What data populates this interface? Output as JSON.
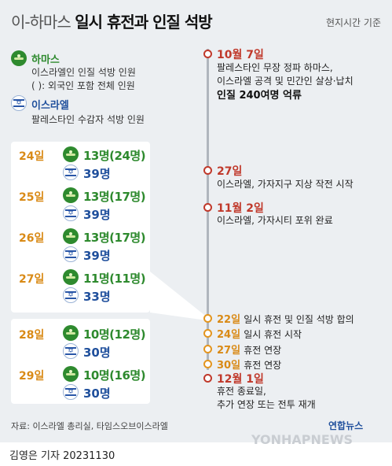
{
  "title": {
    "light": "이-하마스",
    "bold": "일시 휴전과 인질 석방"
  },
  "timezone": "현지시간 기준",
  "legend": {
    "hamas": {
      "label": "하마스",
      "desc1": "이스라엘인 인질 석방 인원",
      "desc2": "( ): 외국인 포함 전체 인원",
      "icon": "hamas-icon"
    },
    "israel": {
      "label": "이스라엘",
      "desc1": "팔레스타인 수감자 석방 인원",
      "icon": "israel-flag-icon"
    }
  },
  "releases": [
    {
      "day": "24일",
      "hamas": "13명(24명)",
      "israel": "39명"
    },
    {
      "day": "25일",
      "hamas": "13명(17명)",
      "israel": "39명"
    },
    {
      "day": "26일",
      "hamas": "13명(17명)",
      "israel": "39명"
    },
    {
      "day": "27일",
      "hamas": "11명(11명)",
      "israel": "33명"
    },
    {
      "day": "28일",
      "hamas": "10명(12명)",
      "israel": "30명"
    },
    {
      "day": "29일",
      "hamas": "10명(16명)",
      "israel": "30명"
    }
  ],
  "timeline": {
    "e1": {
      "date": "10월 7일",
      "line1": "팔레스타인 무장 정파 하마스,",
      "line2": "이스라엘 공격 및 민간인 살상·납치",
      "line3": "인질 240여명 억류"
    },
    "e2": {
      "date": "27일",
      "line1": "이스라엘, 가자지구 지상 작전 시작"
    },
    "e3": {
      "date": "11월 2일",
      "line1": "이스라엘, 가자시티 포위 완료"
    },
    "e4": {
      "date": "22일",
      "text": "일시 휴전 및 인질 석방 합의"
    },
    "e5": {
      "date": "24일",
      "text": "일시 휴전 시작"
    },
    "e6": {
      "date": "27일",
      "text": "휴전 연장"
    },
    "e7": {
      "date": "30일",
      "text": "휴전 연장"
    },
    "e8": {
      "date": "12월 1일",
      "line1": "휴전 종료일,",
      "line2": "추가 연장 또는 전투 재개"
    }
  },
  "source": "자료: 이스라엘 총리실, 타임스오브이스라엘",
  "logo": "연합뉴스",
  "watermark": "YONHAPNEWS",
  "byline": "김영은 기자  20231130"
}
